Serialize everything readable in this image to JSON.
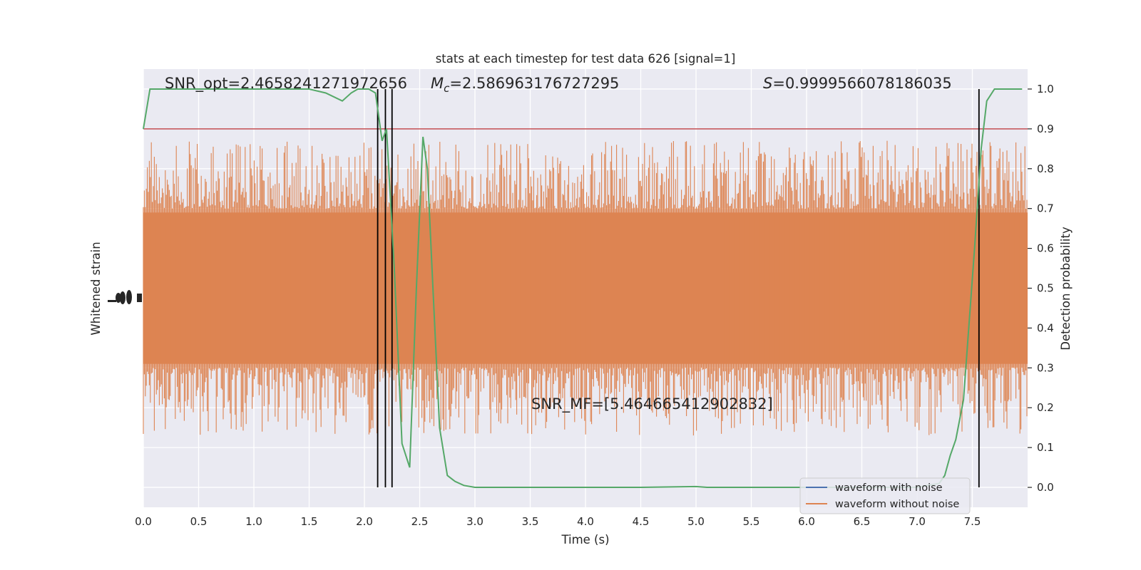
{
  "chart_data": {
    "type": "line",
    "title": "stats at each timestep for test data 626 [signal=1]",
    "xlabel": "Time (s)",
    "ylabel_left": "Whitened strain",
    "ylabel_right": "Detection probability",
    "xlim": [
      0.0,
      8.0
    ],
    "ylim_right": [
      -0.05,
      1.05
    ],
    "xticks": [
      "0.0",
      "0.5",
      "1.0",
      "1.5",
      "2.0",
      "2.5",
      "3.0",
      "3.5",
      "4.0",
      "4.5",
      "5.0",
      "5.5",
      "6.0",
      "6.5",
      "7.0",
      "7.5"
    ],
    "yticks_right": [
      "0.0",
      "0.1",
      "0.2",
      "0.3",
      "0.4",
      "0.5",
      "0.6",
      "0.7",
      "0.8",
      "0.9",
      "1.0"
    ],
    "annotations": {
      "snr_opt": "SNR_opt=2.4658241271972656",
      "mc_symbol": "M",
      "mc_sub": "c",
      "mc_value": "=2.586963176727295",
      "s_symbol": "S",
      "s_value": "=0.9999566078186035",
      "snr_mf": "SNR_MF=[5.464665412902832]"
    },
    "threshold": 0.9,
    "vertical_lines_x": [
      2.12,
      2.19,
      2.25,
      7.56
    ],
    "legend": {
      "placement": "bottom-right",
      "entries": [
        "waveform with noise",
        "waveform without noise"
      ]
    },
    "series": [
      {
        "name": "waveform with noise",
        "color": "#4c72b0",
        "values": []
      },
      {
        "name": "waveform without noise",
        "color": "#dd8452",
        "values": []
      },
      {
        "color": "#55a868",
        "x": [
          0.0,
          0.06,
          0.25,
          0.5,
          0.75,
          1.0,
          1.25,
          1.5,
          1.65,
          1.8,
          1.88,
          1.94,
          2.04,
          2.1,
          2.16,
          2.2,
          2.27,
          2.34,
          2.41,
          2.47,
          2.53,
          2.57,
          2.62,
          2.68,
          2.75,
          2.82,
          2.9,
          3.0,
          3.5,
          4.0,
          4.5,
          5.0,
          5.1,
          6.0,
          7.0,
          7.2,
          7.25,
          7.3,
          7.35,
          7.42,
          7.52,
          7.58,
          7.63,
          7.7,
          7.75,
          7.8,
          7.95
        ],
        "values": [
          0.9,
          1.0,
          1.0,
          1.0,
          1.0,
          1.0,
          1.0,
          1.0,
          0.99,
          0.97,
          0.99,
          1.0,
          1.0,
          0.99,
          0.87,
          0.9,
          0.55,
          0.11,
          0.05,
          0.5,
          0.88,
          0.8,
          0.5,
          0.15,
          0.03,
          0.015,
          0.005,
          0.0,
          0.0,
          0.0,
          0.0,
          0.002,
          0.0,
          0.0,
          0.0,
          0.01,
          0.03,
          0.08,
          0.12,
          0.22,
          0.6,
          0.85,
          0.97,
          1.0,
          1.0,
          1.0,
          1.0
        ]
      }
    ]
  }
}
